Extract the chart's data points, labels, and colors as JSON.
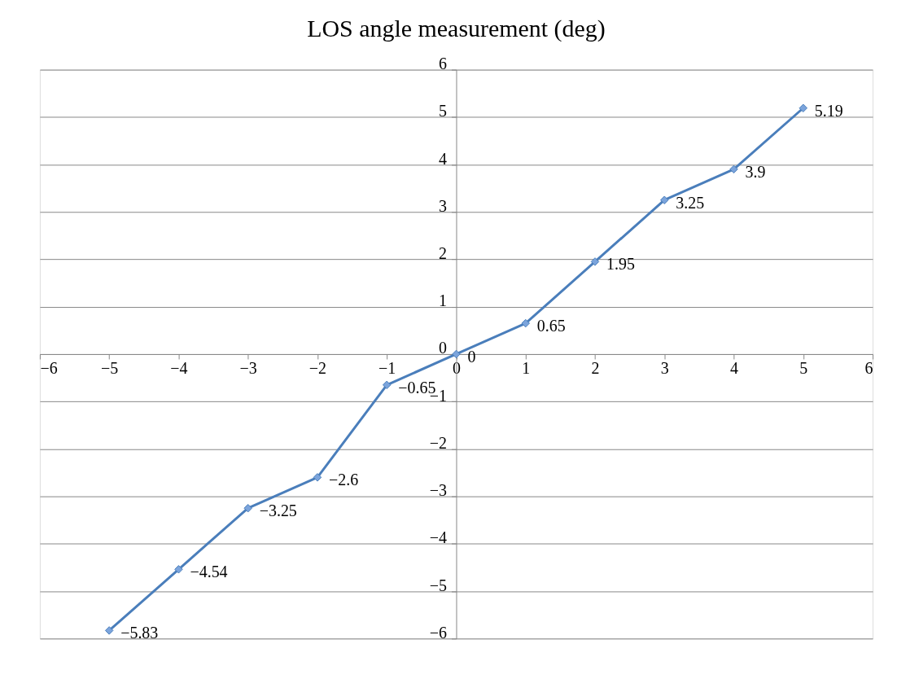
{
  "chart_data": {
    "type": "line",
    "title": "LOS angle measurement (deg)",
    "x": [
      -5,
      -4,
      -3,
      -2,
      -1,
      0,
      1,
      2,
      3,
      4,
      5
    ],
    "series": [
      {
        "color": "#4a7ebb",
        "values": [
          -5.83,
          -4.54,
          -3.25,
          -2.6,
          -0.65,
          0,
          0.65,
          1.95,
          3.25,
          3.9,
          5.19
        ]
      }
    ],
    "xlim": [
      -6,
      6
    ],
    "xticks": [
      -6,
      -5,
      -4,
      -3,
      -2,
      -1,
      0,
      1,
      2,
      3,
      4,
      5,
      6
    ],
    "ylim": [
      -6,
      6
    ],
    "yticks": [
      -6,
      -5,
      -4,
      -3,
      -2,
      -1,
      0,
      1,
      2,
      3,
      4,
      5,
      6
    ],
    "grid": "y",
    "marker": "diamond",
    "line_style": "solid",
    "data_labels": true
  }
}
